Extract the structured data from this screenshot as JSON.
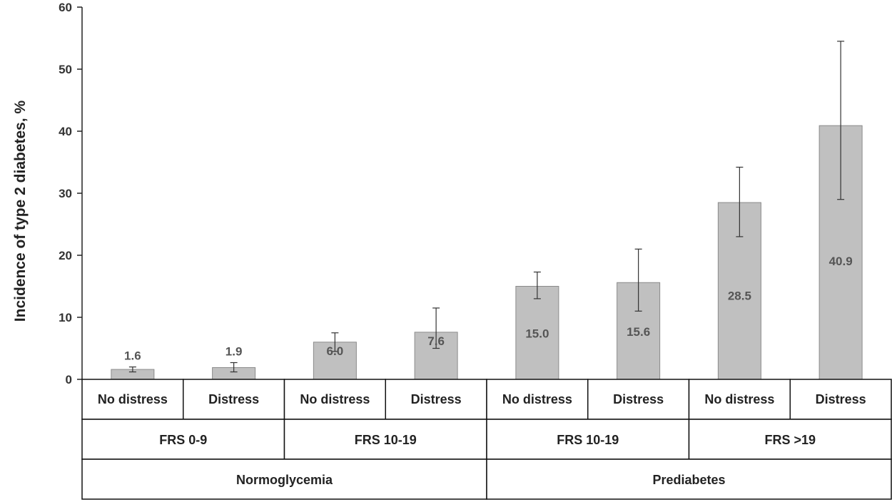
{
  "chart_data": {
    "type": "bar",
    "ylabel": "Incidence of type 2 diabetes, %",
    "ylim": [
      0,
      60
    ],
    "yticks": [
      0,
      10,
      20,
      30,
      40,
      50,
      60
    ],
    "grid": false,
    "legend": "none",
    "categories": [
      "No distress",
      "Distress",
      "No distress",
      "Distress",
      "No distress",
      "Distress",
      "No distress",
      "Distress"
    ],
    "values": [
      1.6,
      1.9,
      6.0,
      7.6,
      15.0,
      15.6,
      28.5,
      40.9
    ],
    "value_labels": [
      "1.6",
      "1.9",
      "6.0",
      "7.6",
      "15.0",
      "15.6",
      "28.5",
      "40.9"
    ],
    "error_low": [
      1.2,
      1.2,
      4.5,
      5.0,
      13.0,
      11.0,
      23.0,
      29.0
    ],
    "error_high": [
      2.0,
      2.7,
      7.5,
      11.5,
      17.3,
      21.0,
      34.2,
      54.5
    ],
    "groups_level2": [
      {
        "label": "FRS 0-9",
        "span": 2
      },
      {
        "label": "FRS 10-19",
        "span": 2
      },
      {
        "label": "FRS 10-19",
        "span": 2
      },
      {
        "label": "FRS >19",
        "span": 2
      }
    ],
    "groups_level3": [
      {
        "label": "Normoglycemia",
        "span": 4
      },
      {
        "label": "Prediabetes",
        "span": 4
      }
    ],
    "colors": {
      "bar": "#c0c0c0",
      "bar_edge": "#8a8a8a",
      "axis": "#222222"
    }
  }
}
